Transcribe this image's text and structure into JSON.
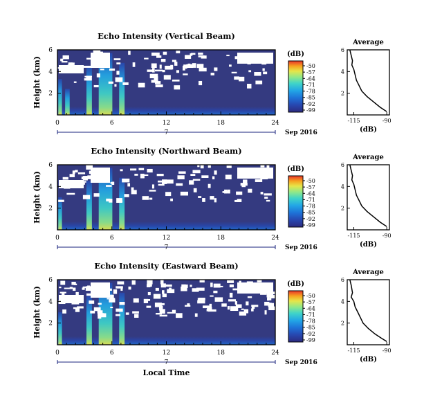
{
  "chart_data": [
    {
      "type": "heatmap",
      "title": "Echo Intensity (Vertical Beam)",
      "ylabel": "Height (km)",
      "y_ticks": [
        "6",
        "4",
        "2"
      ],
      "ylim": [
        0,
        6
      ],
      "x_ticks": [
        "0",
        "6",
        "12",
        "18",
        "24",
        "0"
      ],
      "xlim": [
        0,
        24
      ],
      "date_label": "Sep 2016",
      "day_marker": "7",
      "colorbar": {
        "unit": "(dB)",
        "ticks": [
          "-50",
          "-57",
          "-64",
          "-71",
          "-78",
          "-85",
          "-92",
          "-99"
        ]
      },
      "columns": [
        {
          "x": 0.3,
          "width": 0.4,
          "level": 0.55
        },
        {
          "x": 1.1,
          "width": 0.5,
          "level": 0.4
        },
        {
          "x": 3.5,
          "width": 0.6,
          "level": 0.75
        },
        {
          "x": 5.3,
          "width": 1.5,
          "level": 0.95
        },
        {
          "x": 7.1,
          "width": 0.6,
          "level": 0.8
        }
      ],
      "average_profile": {
        "title": "Average",
        "xlabel": "(dB)",
        "x_ticks": [
          "-115",
          "-90"
        ],
        "y_ticks": [
          "6",
          "4",
          "2"
        ],
        "xlim": [
          -120,
          -88
        ],
        "ylim": [
          0,
          6
        ],
        "points": [
          [
            -118,
            6.0
          ],
          [
            -117,
            5.5
          ],
          [
            -116,
            5.0
          ],
          [
            -116.5,
            4.6
          ],
          [
            -115,
            4.2
          ],
          [
            -114,
            3.7
          ],
          [
            -113,
            3.2
          ],
          [
            -111,
            2.7
          ],
          [
            -109,
            2.2
          ],
          [
            -105,
            1.7
          ],
          [
            -100,
            1.2
          ],
          [
            -95,
            0.7
          ],
          [
            -90,
            0.3
          ]
        ]
      }
    },
    {
      "type": "heatmap",
      "title": "Echo Intensity (Northward Beam)",
      "ylabel": "Height (km)",
      "y_ticks": [
        "6",
        "4",
        "2"
      ],
      "ylim": [
        0,
        6
      ],
      "x_ticks": [
        "0",
        "6",
        "12",
        "18",
        "24",
        "0"
      ],
      "xlim": [
        0,
        24
      ],
      "date_label": "Sep 2016",
      "day_marker": "7",
      "colorbar": {
        "unit": "(dB)",
        "ticks": [
          "-50",
          "-57",
          "-64",
          "-71",
          "-78",
          "-85",
          "-92",
          "-99"
        ]
      },
      "columns": [
        {
          "x": 0.3,
          "width": 0.4,
          "level": 0.5
        },
        {
          "x": 3.5,
          "width": 0.6,
          "level": 0.75
        },
        {
          "x": 5.3,
          "width": 1.5,
          "level": 0.95
        },
        {
          "x": 7.1,
          "width": 0.6,
          "level": 0.8
        }
      ],
      "average_profile": {
        "title": "Average",
        "xlabel": "(dB)",
        "x_ticks": [
          "-115",
          "-90"
        ],
        "y_ticks": [
          "6",
          "4",
          "2"
        ],
        "xlim": [
          -120,
          -88
        ],
        "ylim": [
          0,
          6
        ],
        "points": [
          [
            -118,
            6.0
          ],
          [
            -117,
            5.5
          ],
          [
            -116,
            5.0
          ],
          [
            -116.5,
            4.6
          ],
          [
            -115,
            4.2
          ],
          [
            -114,
            3.7
          ],
          [
            -113,
            3.2
          ],
          [
            -111,
            2.7
          ],
          [
            -109,
            2.2
          ],
          [
            -105,
            1.7
          ],
          [
            -100,
            1.2
          ],
          [
            -95,
            0.7
          ],
          [
            -90,
            0.3
          ]
        ]
      }
    },
    {
      "type": "heatmap",
      "title": "Echo Intensity (Eastward Beam)",
      "ylabel": "Height (km)",
      "y_ticks": [
        "6",
        "4",
        "2"
      ],
      "ylim": [
        0,
        6
      ],
      "x_ticks": [
        "0",
        "6",
        "12",
        "18",
        "24",
        "0"
      ],
      "xlim": [
        0,
        24
      ],
      "date_label": "Sep 2016",
      "day_marker": "7",
      "xlabel": "Local Time",
      "colorbar": {
        "unit": "(dB)",
        "ticks": [
          "-50",
          "-57",
          "-64",
          "-71",
          "-78",
          "-85",
          "-92",
          "-99"
        ]
      },
      "columns": [
        {
          "x": 0.3,
          "width": 0.4,
          "level": 0.5
        },
        {
          "x": 3.5,
          "width": 0.6,
          "level": 0.75
        },
        {
          "x": 5.3,
          "width": 1.5,
          "level": 0.95
        },
        {
          "x": 7.1,
          "width": 0.6,
          "level": 0.8
        }
      ],
      "average_profile": {
        "title": "Average",
        "xlabel": "(dB)",
        "x_ticks": [
          "-115",
          "-90"
        ],
        "y_ticks": [
          "6",
          "4",
          "2"
        ],
        "xlim": [
          -120,
          -88
        ],
        "ylim": [
          0,
          6
        ],
        "points": [
          [
            -118,
            6.0
          ],
          [
            -117,
            5.5
          ],
          [
            -116,
            4.8
          ],
          [
            -117,
            4.4
          ],
          [
            -115,
            4.0
          ],
          [
            -114,
            3.5
          ],
          [
            -112,
            3.0
          ],
          [
            -110,
            2.5
          ],
          [
            -108,
            2.0
          ],
          [
            -104,
            1.5
          ],
          [
            -99,
            1.0
          ],
          [
            -94,
            0.6
          ],
          [
            -90,
            0.3
          ]
        ]
      }
    }
  ],
  "colors": {
    "background_fill": "#343a80",
    "colormap": [
      "#2c2a7e",
      "#2747b0",
      "#1e73d8",
      "#22a6e6",
      "#3fd4c9",
      "#8fe88a",
      "#e6e64a",
      "#f7a21f",
      "#e8332a"
    ],
    "gap": "#ffffff",
    "time_axis_line": "#1a237e"
  }
}
